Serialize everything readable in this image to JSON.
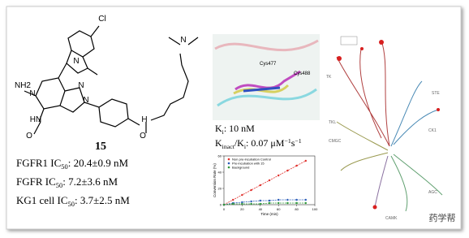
{
  "structure": {
    "atoms": [
      "Cl",
      "N",
      "NH2",
      "N",
      "HN",
      "O",
      "N",
      "N",
      "H",
      "N",
      "O"
    ],
    "compound": "15"
  },
  "activity": [
    {
      "label": "FGFR1 IC",
      "sub": "50",
      "value": ": 20.4±0.9 nM"
    },
    {
      "label": "FGFR IC",
      "sub": "50",
      "value": ": 7.2±3.6 nM"
    },
    {
      "label": "KG1 cell IC",
      "sub": "50",
      "value": ": 3.7±2.5 nM"
    }
  ],
  "protein": {
    "labels": [
      "Cys477",
      "Cys488"
    ]
  },
  "kinetics": {
    "ki": {
      "label": "K",
      "sub": "i",
      "value": ": 10 nM"
    },
    "kinact": {
      "label": "K",
      "sub": "inact",
      "mid": "/K",
      "sub2": "i",
      "value": ": 0.07 μM",
      "sup": "−1",
      "unit": "s",
      "sup2": "−1"
    }
  },
  "conversion_plot": {
    "type": "line",
    "y_label": "Conversion Rate (%)",
    "x_label": "Time (min)",
    "xlim": [
      0,
      100
    ],
    "xticks": [
      0,
      20,
      40,
      60,
      80,
      100
    ],
    "ylim": [
      0,
      60
    ],
    "yticks": [
      0,
      20,
      40,
      60
    ],
    "x": [
      0,
      10,
      20,
      30,
      40,
      50,
      60,
      70,
      80,
      90
    ],
    "series": [
      {
        "name": "Non pre-incubation Control",
        "color": "#e0302c",
        "values": [
          0,
          6,
          12,
          18,
          24,
          30,
          36,
          42,
          48,
          54
        ]
      },
      {
        "name": "Pre-incubation with 15",
        "color": "#2a5cb8",
        "values": [
          0,
          2,
          3,
          4,
          5,
          5,
          6,
          6,
          6,
          6
        ]
      },
      {
        "name": "Background",
        "color": "#2f9a3a",
        "values": [
          0,
          1,
          1,
          1,
          1,
          2,
          2,
          2,
          2,
          2
        ]
      }
    ]
  },
  "kinome": {
    "groups": [
      "TK",
      "TKL",
      "STE",
      "CK1",
      "AGC",
      "CAMK",
      "CMGC"
    ]
  },
  "watermark": "药学帮"
}
